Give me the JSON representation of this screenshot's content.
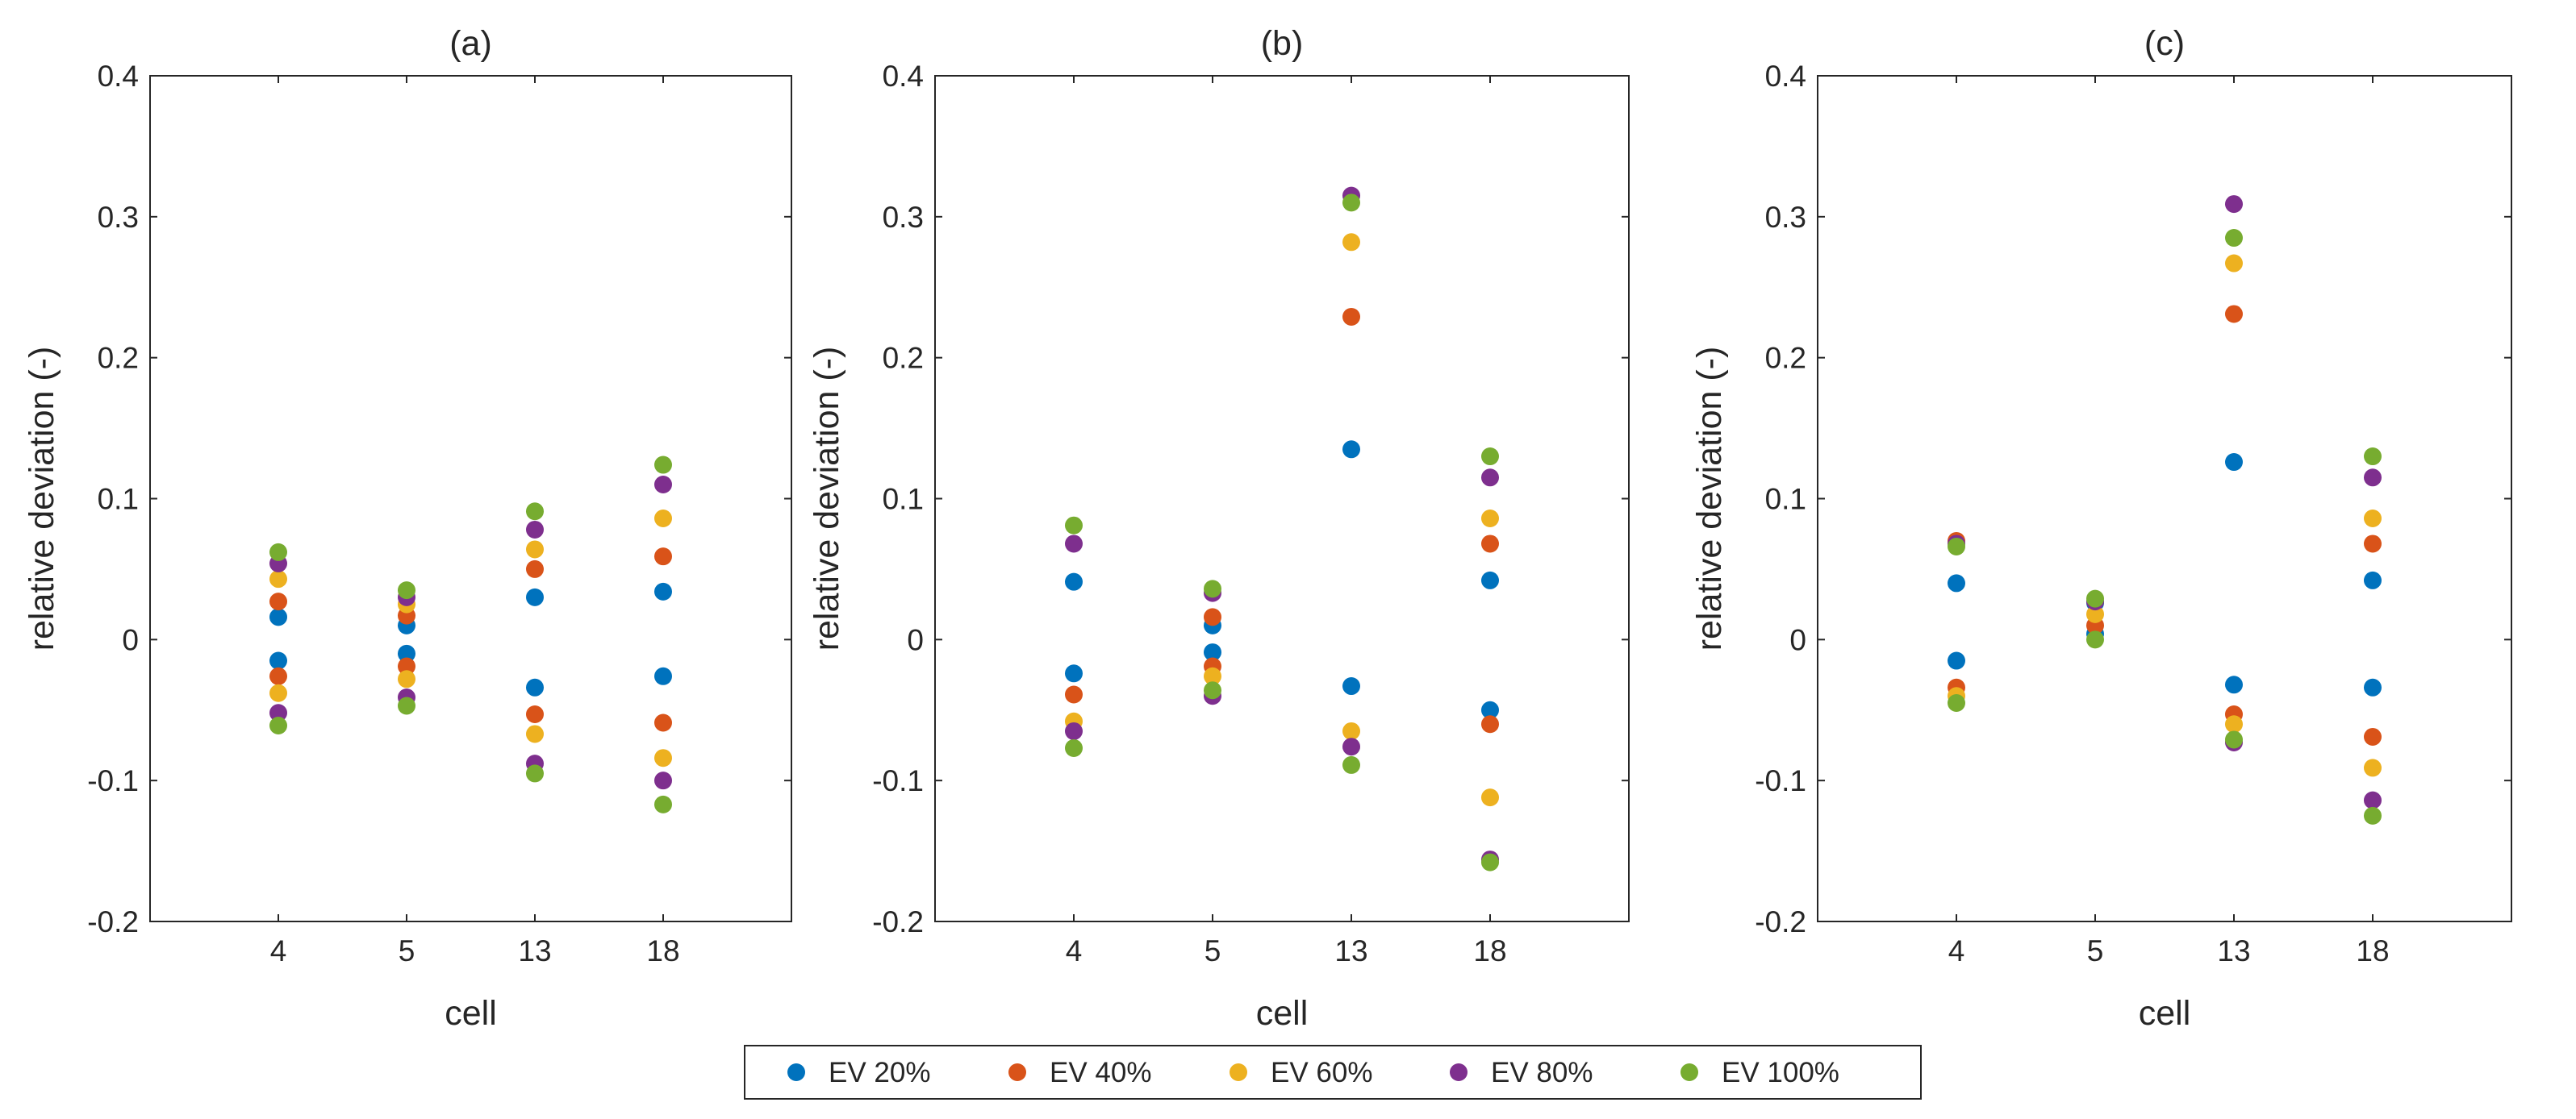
{
  "chart_data": [
    {
      "type": "scatter",
      "title": "(a)",
      "xlabel": "cell",
      "ylabel": "relative deviation (-)",
      "categories": [
        "4",
        "5",
        "13",
        "18"
      ],
      "xlim": [
        0,
        5
      ],
      "ylim": [
        -0.2,
        0.4
      ],
      "yticks": [
        "-0.2",
        "-0.1",
        "0",
        "0.1",
        "0.2",
        "0.3",
        "0.4"
      ],
      "series": [
        {
          "name": "EV 20%",
          "points": [
            [
              1,
              0.016
            ],
            [
              1,
              -0.015
            ],
            [
              2,
              0.01
            ],
            [
              2,
              -0.01
            ],
            [
              3,
              0.03
            ],
            [
              3,
              -0.034
            ],
            [
              4,
              0.034
            ],
            [
              4,
              -0.026
            ]
          ]
        },
        {
          "name": "EV 40%",
          "points": [
            [
              1,
              0.027
            ],
            [
              1,
              -0.026
            ],
            [
              2,
              0.017
            ],
            [
              2,
              -0.019
            ],
            [
              3,
              0.05
            ],
            [
              3,
              -0.053
            ],
            [
              4,
              0.059
            ],
            [
              4,
              -0.059
            ]
          ]
        },
        {
          "name": "EV 60%",
          "points": [
            [
              1,
              0.043
            ],
            [
              1,
              -0.038
            ],
            [
              2,
              0.025
            ],
            [
              2,
              -0.028
            ],
            [
              3,
              0.064
            ],
            [
              3,
              -0.067
            ],
            [
              4,
              0.086
            ],
            [
              4,
              -0.084
            ]
          ]
        },
        {
          "name": "EV 80%",
          "points": [
            [
              1,
              0.054
            ],
            [
              1,
              -0.052
            ],
            [
              2,
              0.03
            ],
            [
              2,
              -0.041
            ],
            [
              3,
              0.078
            ],
            [
              3,
              -0.088
            ],
            [
              4,
              0.11
            ],
            [
              4,
              -0.1
            ]
          ]
        },
        {
          "name": "EV 100%",
          "points": [
            [
              1,
              0.062
            ],
            [
              1,
              -0.061
            ],
            [
              2,
              0.035
            ],
            [
              2,
              -0.047
            ],
            [
              3,
              0.091
            ],
            [
              3,
              -0.095
            ],
            [
              4,
              0.124
            ],
            [
              4,
              -0.117
            ]
          ]
        }
      ]
    },
    {
      "type": "scatter",
      "title": "(b)",
      "xlabel": "cell",
      "ylabel": "relative deviation (-)",
      "categories": [
        "4",
        "5",
        "13",
        "18"
      ],
      "xlim": [
        0,
        5
      ],
      "ylim": [
        -0.2,
        0.4
      ],
      "yticks": [
        "-0.2",
        "-0.1",
        "0",
        "0.1",
        "0.2",
        "0.3",
        "0.4"
      ],
      "series": [
        {
          "name": "EV 20%",
          "points": [
            [
              1,
              0.041
            ],
            [
              1,
              -0.024
            ],
            [
              2,
              0.01
            ],
            [
              2,
              -0.009
            ],
            [
              3,
              0.135
            ],
            [
              3,
              -0.033
            ],
            [
              4,
              0.042
            ],
            [
              4,
              -0.05
            ]
          ]
        },
        {
          "name": "EV 40%",
          "points": [
            [
              1,
              -0.039
            ],
            [
              2,
              0.016
            ],
            [
              2,
              -0.019
            ],
            [
              3,
              0.229
            ],
            [
              4,
              0.068
            ],
            [
              4,
              -0.06
            ]
          ]
        },
        {
          "name": "EV 60%",
          "points": [
            [
              1,
              -0.058
            ],
            [
              2,
              -0.026
            ],
            [
              3,
              0.282
            ],
            [
              3,
              -0.065
            ],
            [
              4,
              0.086
            ],
            [
              4,
              -0.112
            ]
          ]
        },
        {
          "name": "EV 80%",
          "points": [
            [
              1,
              0.068
            ],
            [
              1,
              -0.065
            ],
            [
              2,
              0.033
            ],
            [
              2,
              -0.04
            ],
            [
              3,
              0.315
            ],
            [
              3,
              -0.076
            ],
            [
              4,
              0.115
            ],
            [
              4,
              -0.156
            ]
          ]
        },
        {
          "name": "EV 100%",
          "points": [
            [
              1,
              0.081
            ],
            [
              1,
              -0.077
            ],
            [
              2,
              0.036
            ],
            [
              2,
              -0.036
            ],
            [
              3,
              0.31
            ],
            [
              3,
              -0.089
            ],
            [
              4,
              0.13
            ],
            [
              4,
              -0.158
            ]
          ]
        }
      ]
    },
    {
      "type": "scatter",
      "title": "(c)",
      "xlabel": "cell",
      "ylabel": "relative deviation (-)",
      "categories": [
        "4",
        "5",
        "13",
        "18"
      ],
      "xlim": [
        0,
        5
      ],
      "ylim": [
        -0.2,
        0.4
      ],
      "yticks": [
        "-0.2",
        "-0.1",
        "0",
        "0.1",
        "0.2",
        "0.3",
        "0.4"
      ],
      "series": [
        {
          "name": "EV 20%",
          "points": [
            [
              1,
              0.04
            ],
            [
              1,
              -0.015
            ],
            [
              2,
              0.026
            ],
            [
              2,
              0.004
            ],
            [
              3,
              0.126
            ],
            [
              3,
              -0.032
            ],
            [
              4,
              0.042
            ],
            [
              4,
              -0.034
            ]
          ]
        },
        {
          "name": "EV 40%",
          "points": [
            [
              1,
              0.07
            ],
            [
              1,
              -0.034
            ],
            [
              2,
              0.01
            ],
            [
              3,
              0.231
            ],
            [
              3,
              -0.053
            ],
            [
              4,
              0.068
            ],
            [
              4,
              -0.069
            ]
          ]
        },
        {
          "name": "EV 60%",
          "points": [
            [
              1,
              -0.04
            ],
            [
              2,
              0.018
            ],
            [
              3,
              0.267
            ],
            [
              3,
              -0.06
            ],
            [
              4,
              0.086
            ],
            [
              4,
              -0.091
            ]
          ]
        },
        {
          "name": "EV 80%",
          "points": [
            [
              1,
              0.068
            ],
            [
              2,
              0.027
            ],
            [
              3,
              0.309
            ],
            [
              3,
              -0.073
            ],
            [
              4,
              0.115
            ],
            [
              4,
              -0.114
            ]
          ]
        },
        {
          "name": "EV 100%",
          "points": [
            [
              1,
              0.066
            ],
            [
              1,
              -0.045
            ],
            [
              2,
              0.029
            ],
            [
              2,
              0.0
            ],
            [
              3,
              0.285
            ],
            [
              3,
              -0.071
            ],
            [
              4,
              0.13
            ],
            [
              4,
              -0.125
            ]
          ]
        }
      ]
    }
  ],
  "legend": {
    "items": [
      {
        "label": "EV 20%",
        "color": "#0072BD"
      },
      {
        "label": "EV 40%",
        "color": "#D95319"
      },
      {
        "label": "EV 60%",
        "color": "#EDB120"
      },
      {
        "label": "EV 80%",
        "color": "#7E2F8E"
      },
      {
        "label": "EV 100%",
        "color": "#77AC30"
      }
    ]
  },
  "colors": {
    "axis": "#262626",
    "background": "#ffffff"
  }
}
